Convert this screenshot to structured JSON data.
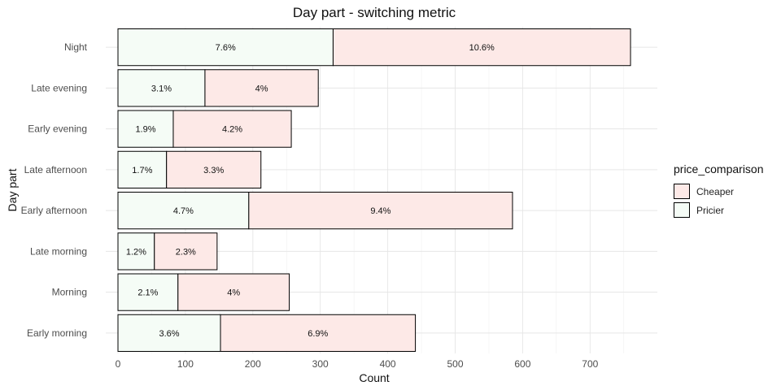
{
  "chart_data": {
    "type": "bar",
    "orientation": "horizontal",
    "stacked": true,
    "title": "Day part - switching metric",
    "xlabel": "Count",
    "ylabel": "Day part",
    "xlim": [
      0,
      760
    ],
    "xticks": [
      0,
      100,
      200,
      300,
      400,
      500,
      600,
      700
    ],
    "grid": true,
    "legend_position": "right",
    "legend_title": "price_comparison",
    "legend": [
      {
        "name": "Cheaper",
        "color": "#fde9e7"
      },
      {
        "name": "Pricier",
        "color": "#f5fcf6"
      }
    ],
    "categories": [
      "Night",
      "Late evening",
      "Early evening",
      "Late afternoon",
      "Early afternoon",
      "Late morning",
      "Morning",
      "Early morning"
    ],
    "series": [
      {
        "name": "Pricier",
        "color": "#f5fcf6",
        "values": [
          319,
          129,
          82,
          72,
          194,
          54,
          89,
          152
        ],
        "labels": [
          "7.6%",
          "3.1%",
          "1.9%",
          "1.7%",
          "4.7%",
          "1.2%",
          "2.1%",
          "3.6%"
        ]
      },
      {
        "name": "Cheaper",
        "color": "#fde9e7",
        "values": [
          441,
          168,
          175,
          140,
          391,
          93,
          165,
          289
        ],
        "labels": [
          "10.6%",
          "4%",
          "4.2%",
          "3.3%",
          "9.4%",
          "2.3%",
          "4%",
          "6.9%"
        ]
      }
    ]
  }
}
